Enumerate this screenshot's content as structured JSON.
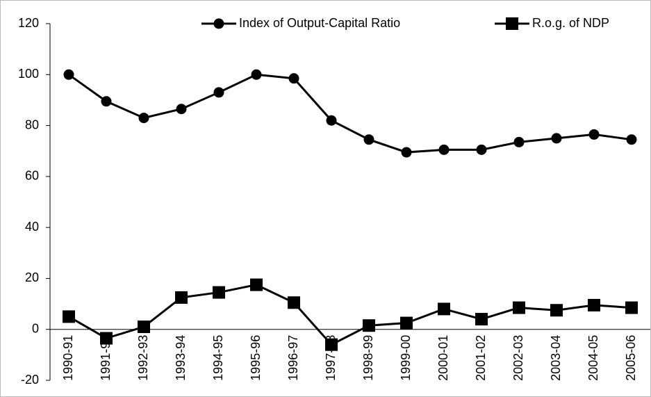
{
  "chart_data": {
    "type": "line",
    "categories": [
      "1990-91",
      "1991-92",
      "1992-93",
      "1993-94",
      "1994-95",
      "1995-96",
      "1996-97",
      "1997-98",
      "1998-99",
      "1999-00",
      "2000-01",
      "2001-02",
      "2002-03",
      "2003-04",
      "2004-05",
      "2005-06"
    ],
    "series": [
      {
        "name": "Index of Output-Capital Ratio",
        "color": "#000000",
        "marker": "circle",
        "values": [
          100,
          89.5,
          83,
          86.5,
          93,
          100,
          98.5,
          82,
          74.5,
          69.5,
          70.5,
          70.5,
          73.5,
          75,
          76.5,
          74.5
        ]
      },
      {
        "name": "R.o.g. of NDP",
        "color": "#000000",
        "marker": "square",
        "values": [
          5,
          -3.5,
          1,
          12.5,
          14.5,
          17.5,
          10.5,
          -6,
          1.5,
          2.5,
          8,
          4,
          8.5,
          7.5,
          9.5,
          8.5
        ]
      }
    ],
    "ylim": [
      -20,
      120
    ],
    "yticks": [
      -20,
      0,
      20,
      40,
      60,
      80,
      100,
      120
    ],
    "grid": false,
    "legend": "top"
  }
}
